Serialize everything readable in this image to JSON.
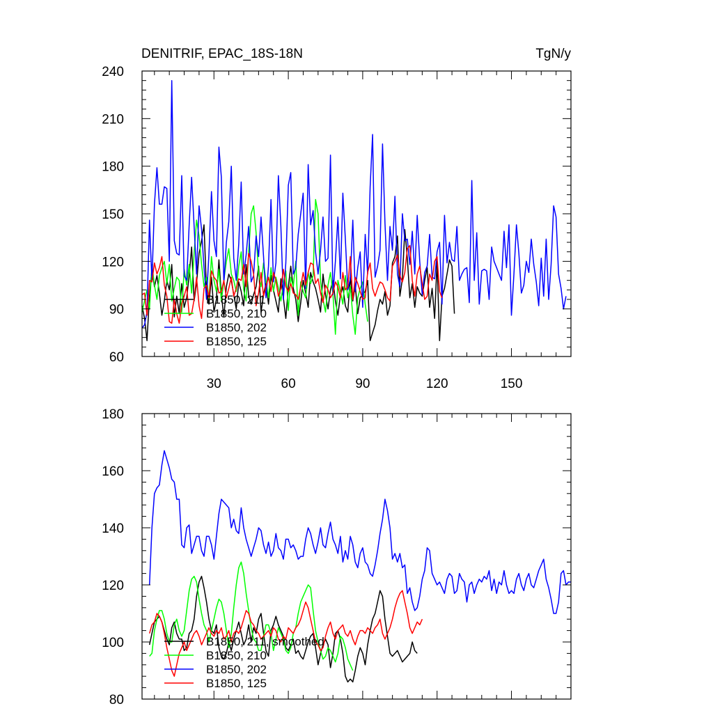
{
  "chart_data": [
    {
      "type": "line",
      "title": "DENITRIF, EPAC_18S-18N",
      "units": "TgN/y",
      "xlabel": "",
      "ylabel": "",
      "xlim": [
        1,
        174
      ],
      "ylim": [
        60,
        240
      ],
      "xticks": [
        30,
        60,
        90,
        120,
        150
      ],
      "yticks": [
        60,
        90,
        120,
        150,
        180,
        210,
        240
      ],
      "legend_position": "lower-left",
      "series": [
        {
          "name": "B1850, 211",
          "color": "#000000",
          "x_start": 1,
          "values": [
            92,
            84,
            70,
            98,
            115,
            104,
            111,
            100,
            86,
            95,
            108,
            102,
            118,
            85,
            98,
            87,
            106,
            91,
            97,
            111,
            129,
            95,
            106,
            125,
            133,
            143,
            101,
            93,
            110,
            88,
            96,
            121,
            99,
            85,
            104,
            112,
            108,
            99,
            90,
            107,
            101,
            92,
            118,
            98,
            93,
            99,
            104,
            117,
            88,
            99,
            106,
            93,
            111,
            102,
            95,
            88,
            109,
            97,
            84,
            104,
            117,
            103,
            96,
            82,
            94,
            108,
            100,
            91,
            113,
            107,
            103,
            96,
            88,
            112,
            99,
            90,
            102,
            108,
            95,
            86,
            99,
            104,
            92,
            88,
            110,
            95,
            105,
            87,
            97,
            99,
            101,
            108,
            70,
            75,
            80,
            89,
            96,
            93,
            101,
            86,
            92,
            119,
            123,
            136,
            98,
            109,
            140,
            122,
            97,
            106,
            91,
            104,
            100,
            98,
            108,
            116,
            91,
            103,
            84,
            120,
            70,
            98,
            103,
            112,
            121,
            117,
            87
          ]
        },
        {
          "name": "B1850, 210",
          "color": "#00ff00",
          "x_start": 1,
          "values": [
            88,
            95,
            102,
            90,
            118,
            105,
            96,
            111,
            116,
            120,
            106,
            118,
            95,
            103,
            110,
            108,
            88,
            115,
            105,
            118,
            100,
            125,
            146,
            136,
            118,
            104,
            110,
            96,
            123,
            108,
            101,
            115,
            95,
            108,
            120,
            128,
            112,
            108,
            101,
            117,
            126,
            102,
            95,
            126,
            150,
            155,
            138,
            112,
            104,
            119,
            108,
            97,
            116,
            101,
            110,
            103,
            95,
            106,
            114,
            89,
            110,
            104,
            120,
            86,
            107,
            101,
            97,
            113,
            106,
            111,
            159,
            150,
            107,
            96,
            88,
            105,
            113,
            99,
            74,
            108,
            101,
            93,
            111,
            97,
            104,
            86,
            74,
            97,
            103,
            107,
            93,
            82
          ]
        },
        {
          "name": "B1850, 202",
          "color": "#0000ff",
          "x_start": 1,
          "values": [
            78,
            80,
            88,
            146,
            107,
            156,
            179,
            156,
            156,
            167,
            166,
            120,
            234,
            133,
            125,
            124,
            174,
            111,
            108,
            143,
            173,
            142,
            112,
            155,
            140,
            116,
            96,
            125,
            164,
            133,
            123,
            192,
            173,
            106,
            132,
            145,
            180,
            122,
            108,
            131,
            170,
            112,
            124,
            142,
            107,
            111,
            136,
            123,
            148,
            123,
            97,
            117,
            159,
            107,
            119,
            174,
            142,
            96,
            119,
            168,
            176,
            112,
            116,
            137,
            150,
            163,
            103,
            181,
            143,
            152,
            126,
            112,
            127,
            148,
            120,
            122,
            187,
            99,
            120,
            148,
            109,
            163,
            134,
            102,
            109,
            146,
            101,
            116,
            126,
            91,
            137,
            112,
            167,
            200,
            110,
            117,
            127,
            194,
            144,
            108,
            142,
            127,
            161,
            112,
            104,
            150,
            133,
            134,
            118,
            139,
            112,
            149,
            120,
            99,
            113,
            117,
            137,
            110,
            109,
            126,
            132,
            93,
            149,
            119,
            132,
            121,
            120,
            142,
            108,
            112,
            115,
            116,
            94,
            171,
            108,
            138,
            93,
            114,
            115,
            114,
            96,
            129,
            120,
            116,
            112,
            108,
            139,
            116,
            143,
            86,
            112,
            143,
            125,
            100,
            105,
            120,
            113,
            134,
            118,
            107,
            92,
            122,
            98,
            134,
            96,
            118,
            155,
            148,
            112,
            103,
            90,
            98
          ]
        },
        {
          "name": "B1850, 125",
          "color": "#ff0000",
          "x_start": 1,
          "values": [
            99,
            100,
            86,
            108,
            107,
            119,
            112,
            116,
            123,
            105,
            98,
            82,
            81,
            96,
            87,
            81,
            93,
            98,
            104,
            86,
            87,
            96,
            110,
            92,
            84,
            103,
            105,
            97,
            114,
            110,
            108,
            100,
            101,
            108,
            97,
            103,
            110,
            98,
            103,
            109,
            108,
            118,
            104,
            125,
            120,
            112,
            92,
            100,
            113,
            98,
            104,
            110,
            101,
            113,
            108,
            98,
            103,
            115,
            104,
            101,
            106,
            100,
            99,
            96,
            104,
            113,
            105,
            113,
            119,
            118,
            106,
            109,
            100,
            94,
            105,
            102,
            97,
            100,
            107,
            104,
            97,
            113,
            102,
            104,
            123,
            96,
            110,
            106,
            101,
            96,
            97,
            113,
            119,
            103,
            98,
            103,
            107,
            106,
            102,
            97,
            95,
            117,
            120,
            124,
            111,
            107,
            113,
            128,
            130,
            108,
            98,
            112,
            117,
            106,
            96,
            98,
            112,
            108,
            120,
            123,
            101,
            97
          ]
        }
      ]
    },
    {
      "type": "line",
      "title": "",
      "xlabel": "",
      "ylabel": "",
      "xlim": [
        1,
        174
      ],
      "ylim": [
        80,
        180
      ],
      "yticks": [
        80,
        100,
        120,
        140,
        160,
        180
      ],
      "xticks": [
        30,
        60,
        90,
        120,
        150
      ],
      "legend_position": "lower-left",
      "series": [
        {
          "name": "B1850, 211, smoothed",
          "color": "#000000",
          "x_start": 4,
          "values": [
            99,
            103,
            107,
            108,
            109,
            107,
            104,
            101,
            99,
            105,
            107,
            103,
            101,
            101,
            97,
            98,
            103,
            104,
            108,
            116,
            121,
            123,
            119,
            114,
            108,
            104,
            103,
            106,
            98,
            95,
            94,
            96,
            100,
            97,
            101,
            104,
            107,
            103,
            99,
            101,
            106,
            100,
            105,
            103,
            108,
            110,
            103,
            97,
            95,
            104,
            106,
            109,
            106,
            104,
            102,
            98,
            97,
            99,
            101,
            96,
            97,
            95,
            94,
            97,
            100,
            102,
            103,
            98,
            92,
            96,
            99,
            101,
            99,
            91,
            96,
            103,
            104,
            101,
            96,
            88,
            86,
            87,
            86,
            90,
            95,
            98,
            96,
            92,
            99,
            104,
            108,
            110,
            114,
            118,
            116,
            108,
            102,
            96,
            95,
            96,
            97,
            95,
            93,
            94,
            95,
            96,
            100,
            97,
            96
          ]
        },
        {
          "name": "B1850, 210",
          "color": "#00ff00",
          "x_start": 4,
          "values": [
            95,
            96,
            104,
            108,
            111,
            111,
            108,
            103,
            100,
            100,
            106,
            108,
            104,
            102,
            104,
            111,
            118,
            122,
            123,
            121,
            115,
            110,
            106,
            104,
            100,
            104,
            108,
            112,
            115,
            114,
            110,
            104,
            98,
            103,
            112,
            120,
            126,
            128,
            124,
            117,
            111,
            105,
            101,
            100,
            97,
            97,
            102,
            106,
            106,
            103,
            97,
            101,
            105,
            103,
            101,
            97,
            96,
            98,
            103,
            105,
            110,
            114,
            116,
            118,
            120,
            119,
            111,
            104,
            100,
            97,
            94,
            95,
            98,
            97,
            95,
            93,
            96,
            102,
            101,
            98,
            94,
            92,
            90
          ]
        },
        {
          "name": "B1850, 202",
          "color": "#0000ff",
          "x_start": 4,
          "values": [
            120,
            140,
            152,
            154,
            155,
            162,
            167,
            164,
            161,
            157,
            156,
            150,
            150,
            134,
            133,
            140,
            141,
            131,
            134,
            137,
            137,
            132,
            130,
            137,
            137,
            134,
            129,
            137,
            145,
            150,
            149,
            148,
            147,
            140,
            143,
            139,
            138,
            147,
            140,
            136,
            133,
            130,
            133,
            136,
            140,
            139,
            134,
            131,
            135,
            130,
            132,
            138,
            133,
            132,
            129,
            136,
            136,
            133,
            134,
            132,
            129,
            130,
            130,
            136,
            140,
            138,
            134,
            131,
            135,
            140,
            134,
            133,
            138,
            142,
            136,
            134,
            131,
            137,
            128,
            132,
            129,
            137,
            134,
            128,
            126,
            131,
            133,
            128,
            127,
            124,
            123,
            127,
            132,
            138,
            143,
            150,
            146,
            140,
            129,
            131,
            128,
            131,
            126,
            127,
            117,
            119,
            114,
            111,
            112,
            116,
            122,
            125,
            133,
            132,
            124,
            122,
            120,
            121,
            119,
            117,
            122,
            124,
            123,
            117,
            118,
            124,
            122,
            121,
            114,
            120,
            121,
            117,
            120,
            122,
            121,
            123,
            122,
            125,
            118,
            122,
            117,
            121,
            120,
            125,
            120,
            117,
            118,
            117,
            122,
            124,
            120,
            118,
            122,
            124,
            120,
            119,
            122,
            125,
            127,
            129,
            122,
            119,
            115,
            110,
            110,
            114,
            124,
            125,
            120,
            121,
            121
          ]
        },
        {
          "name": "B1850, 125",
          "color": "#ff0000",
          "x_start": 4,
          "values": [
            103,
            106,
            107,
            110,
            109,
            107,
            103,
            98,
            94,
            90,
            88,
            92,
            96,
            98,
            100,
            97,
            99,
            101,
            103,
            104,
            102,
            99,
            101,
            103,
            105,
            103,
            102,
            104,
            103,
            105,
            101,
            102,
            104,
            100,
            103,
            104,
            103,
            105,
            108,
            111,
            110,
            107,
            106,
            104,
            103,
            101,
            102,
            103,
            104,
            102,
            105,
            104,
            101,
            100,
            102,
            101,
            105,
            104,
            103,
            105,
            106,
            108,
            111,
            114,
            112,
            108,
            104,
            100,
            99,
            97,
            98,
            102,
            105,
            107,
            103,
            101,
            104,
            105,
            106,
            103,
            102,
            104,
            101,
            99,
            102,
            104,
            104,
            103,
            105,
            104,
            103,
            105,
            106,
            108,
            103,
            101,
            103,
            105,
            108,
            112,
            115,
            117,
            118,
            114,
            110,
            105,
            103,
            105,
            107,
            106,
            108
          ]
        }
      ]
    }
  ]
}
